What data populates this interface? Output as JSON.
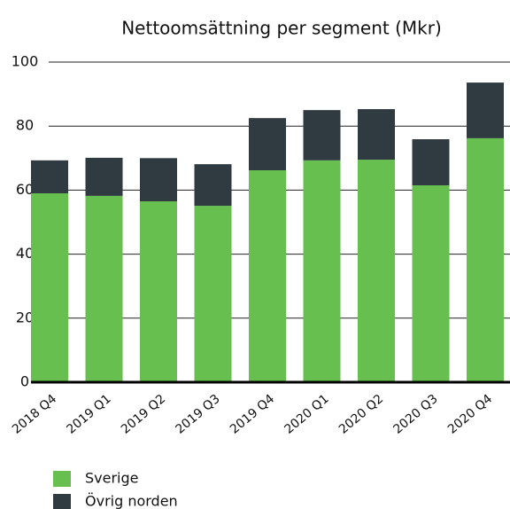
{
  "chart_data": {
    "type": "stacked_bar",
    "title": "Nettoomsättning per segment (Mkr)",
    "categories": [
      "2018 Q4",
      "2019 Q1",
      "2019 Q2",
      "2019 Q3",
      "2019 Q4",
      "2020 Q1",
      "2020 Q2",
      "2020 Q3",
      "2020 Q4"
    ],
    "series": [
      {
        "name": "Sverige",
        "color": "#66bf4e",
        "values": [
          59,
          58.2,
          56.5,
          55.1,
          66.2,
          69.3,
          69.5,
          61.5,
          76.2
        ]
      },
      {
        "name": "Övrig norden",
        "color": "#2f3b41",
        "values": [
          10.3,
          11.9,
          13.5,
          13,
          16.3,
          15.7,
          15.8,
          14.4,
          17.4
        ]
      }
    ],
    "ylim": [
      0,
      100
    ],
    "yticks": [
      0,
      20,
      40,
      60,
      80,
      100
    ],
    "grid": true
  }
}
